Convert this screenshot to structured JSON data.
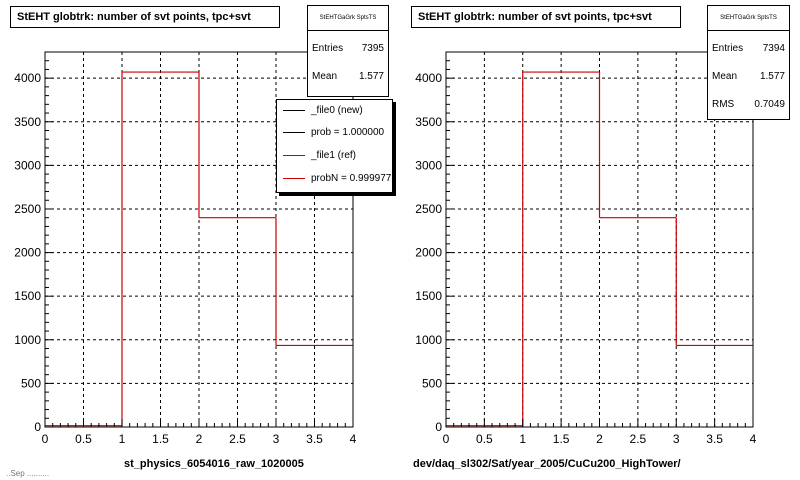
{
  "panels": [
    {
      "title": "StEHT globtrk: number of svt points, tpc+svt",
      "stats": {
        "name": "StEHTGaGrk SptsTS",
        "rows": [
          {
            "label": "Entries",
            "value": "7395"
          },
          {
            "label": "Mean",
            "value": "1.577"
          }
        ]
      },
      "footer": "st_physics_6054016_raw_1020005",
      "legend": [
        {
          "text": "_file0 (new)",
          "color": "#000000"
        },
        {
          "text": "prob = 1.000000",
          "color": "#000000"
        },
        {
          "text": "_file1 (ref)",
          "color": "#cc0000"
        },
        {
          "text": "probN = 0.999977",
          "color": "#cc0000"
        }
      ]
    },
    {
      "title": "StEHT globtrk: number of svt points, tpc+svt",
      "stats": {
        "name": "StEHTGaGrk SptsTS",
        "rows": [
          {
            "label": "Entries",
            "value": "7394"
          },
          {
            "label": "Mean",
            "value": "1.577"
          },
          {
            "label": "RMS",
            "value": "0.7049"
          }
        ]
      },
      "footer": "dev/daq_sl302/Sat/year_2005/CuCu200_HighTower/"
    }
  ],
  "corner_text": "..Sep  ..........",
  "chart_data": [
    {
      "type": "bar",
      "title": "StEHT globtrk: number of svt points, tpc+svt",
      "bin_edges": [
        0,
        1,
        2,
        3,
        4
      ],
      "series": [
        {
          "values": [
            15,
            4070,
            2400,
            935
          ]
        }
      ],
      "xlim": [
        0,
        4
      ],
      "ylim": [
        0,
        4300
      ],
      "xticks": [
        0,
        0.5,
        1,
        1.5,
        2,
        2.5,
        3,
        3.5,
        4
      ],
      "yticks": [
        0,
        500,
        1000,
        1500,
        2000,
        2500,
        3000,
        3500,
        4000
      ],
      "grid": true,
      "legend_position": "top-right",
      "color": "#cc0000"
    },
    {
      "type": "bar",
      "title": "StEHT globtrk: number of svt points, tpc+svt",
      "bin_edges": [
        0,
        1,
        2,
        3,
        4
      ],
      "series": [
        {
          "values": [
            15,
            4070,
            2400,
            935
          ]
        }
      ],
      "xlim": [
        0,
        4
      ],
      "ylim": [
        0,
        4300
      ],
      "xticks": [
        0,
        0.5,
        1,
        1.5,
        2,
        2.5,
        3,
        3.5,
        4
      ],
      "yticks": [
        0,
        500,
        1000,
        1500,
        2000,
        2500,
        3000,
        3500,
        4000
      ],
      "grid": true,
      "color": "#cc0000"
    }
  ]
}
